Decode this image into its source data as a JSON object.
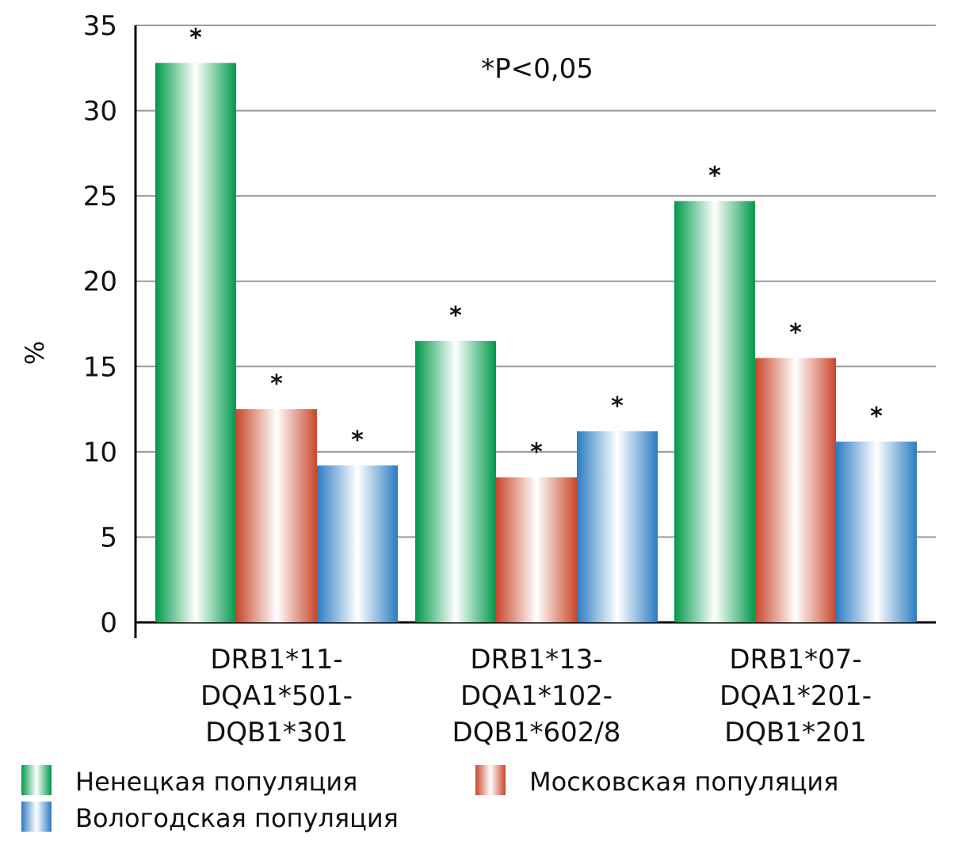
{
  "chart_data": {
    "type": "bar",
    "title": "",
    "xlabel": "",
    "ylabel": "%",
    "ylim": [
      0,
      35
    ],
    "yticks": [
      "0",
      "5",
      "10",
      "15",
      "20",
      "25",
      "30",
      "35"
    ],
    "grid": true,
    "annotation": "*P<0,05",
    "significance_marker": "*",
    "categories": [
      [
        "DRB1*11-",
        "DQA1*501-",
        "DQB1*301"
      ],
      [
        "DRB1*13-",
        "DQA1*102-",
        "DQB1*602/8"
      ],
      [
        "DRB1*07-",
        "DQA1*201-",
        "DQB1*201"
      ]
    ],
    "series": [
      {
        "name": "Ненецкая популяция",
        "color": "#00994a",
        "values": [
          32.8,
          16.5,
          24.7
        ],
        "significant": [
          true,
          true,
          true
        ]
      },
      {
        "name": "Московская популяция",
        "color": "#c8472b",
        "values": [
          12.5,
          8.5,
          15.5
        ],
        "significant": [
          true,
          true,
          true
        ]
      },
      {
        "name": "Вологодская популяция",
        "color": "#2b7cc2",
        "values": [
          9.2,
          11.2,
          10.6
        ],
        "significant": [
          true,
          true,
          true
        ]
      }
    ],
    "legend_position": "bottom"
  }
}
